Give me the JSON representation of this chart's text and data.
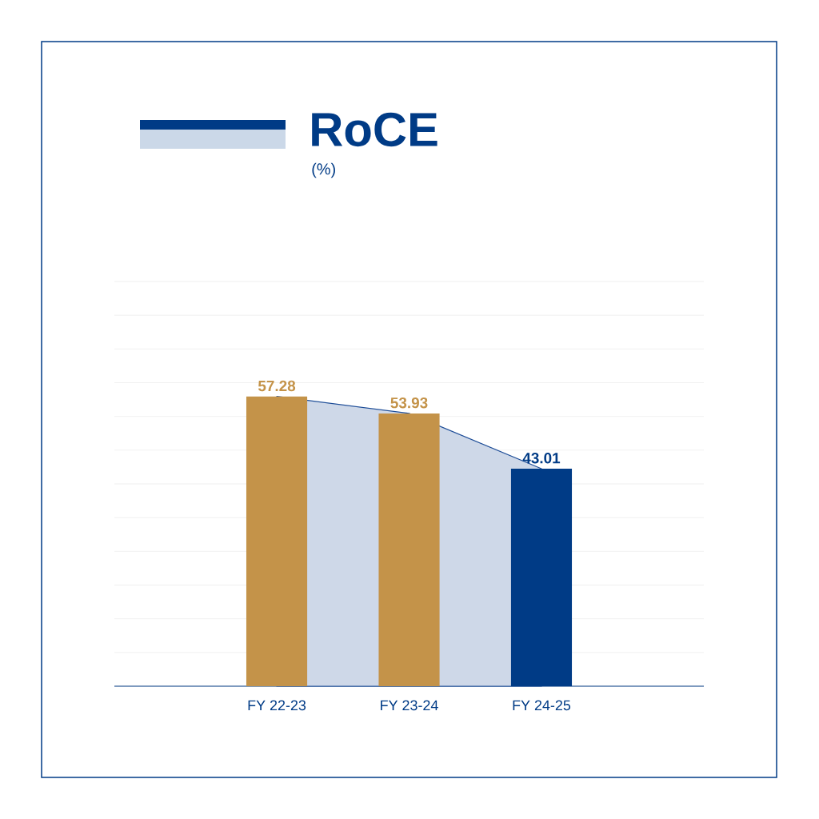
{
  "chart_data": {
    "type": "bar",
    "title": "RoCE",
    "subtitle": "(%)",
    "categories": [
      "FY 22-23",
      "FY 23-24",
      "FY 24-25"
    ],
    "series": [
      {
        "type": "area",
        "color": "#1f4e98",
        "values": [
          57.28,
          53.93,
          43.01
        ]
      },
      {
        "colors": [
          "#c49349",
          "#c49349",
          "#003b86"
        ],
        "values": [
          57.28,
          53.93,
          43.01
        ],
        "value_labels": [
          "57.28",
          "53.93",
          "43.01"
        ]
      }
    ],
    "grid": "y",
    "tick_labels": "x",
    "ylim": [
      0,
      80
    ],
    "yticks": [
      {
        "value": 0,
        "label": null
      },
      {
        "value": 6.67,
        "label": null
      },
      {
        "value": 13.33,
        "label": null
      },
      {
        "value": 20,
        "label": null
      },
      {
        "value": 26.67,
        "label": null
      },
      {
        "value": 33.33,
        "label": null
      },
      {
        "value": 40,
        "label": null
      },
      {
        "value": 46.67,
        "label": null
      },
      {
        "value": 53.33,
        "label": null
      },
      {
        "value": 60,
        "label": null
      },
      {
        "value": 66.67,
        "label": null
      },
      {
        "value": 73.33,
        "label": null
      },
      {
        "value": 80,
        "label": null
      }
    ]
  }
}
